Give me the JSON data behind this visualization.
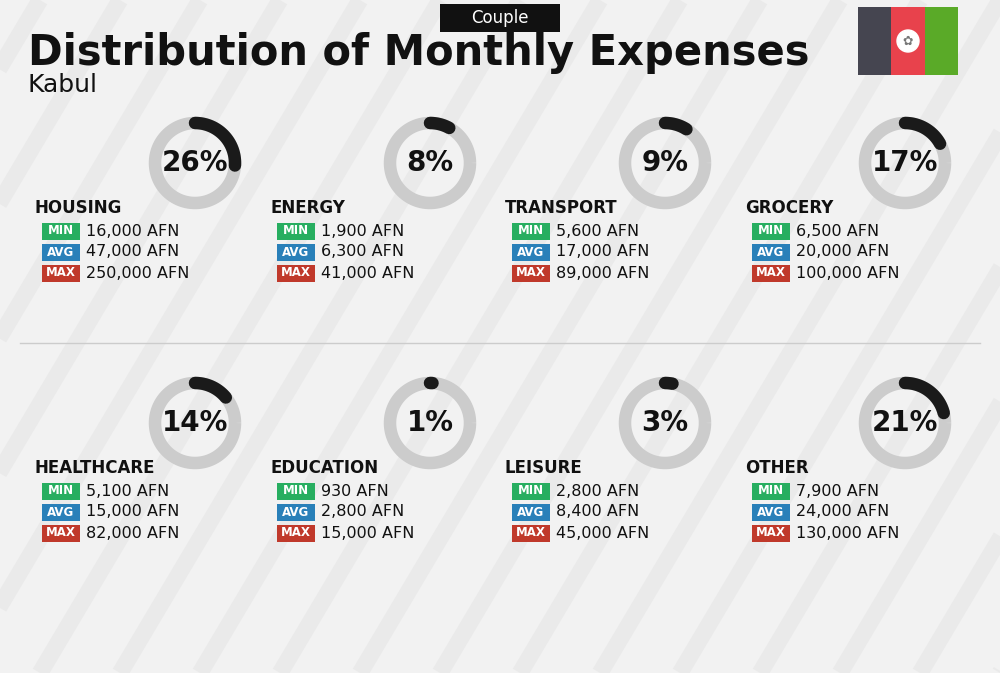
{
  "title": "Distribution of Monthly Expenses",
  "subtitle": "Couple",
  "city": "Kabul",
  "bg_color": "#f2f2f2",
  "categories": [
    {
      "name": "HOUSING",
      "pct": 26,
      "min": "16,000 AFN",
      "avg": "47,000 AFN",
      "max": "250,000 AFN",
      "col": 0,
      "row": 0
    },
    {
      "name": "ENERGY",
      "pct": 8,
      "min": "1,900 AFN",
      "avg": "6,300 AFN",
      "max": "41,000 AFN",
      "col": 1,
      "row": 0
    },
    {
      "name": "TRANSPORT",
      "pct": 9,
      "min": "5,600 AFN",
      "avg": "17,000 AFN",
      "max": "89,000 AFN",
      "col": 2,
      "row": 0
    },
    {
      "name": "GROCERY",
      "pct": 17,
      "min": "6,500 AFN",
      "avg": "20,000 AFN",
      "max": "100,000 AFN",
      "col": 3,
      "row": 0
    },
    {
      "name": "HEALTHCARE",
      "pct": 14,
      "min": "5,100 AFN",
      "avg": "15,000 AFN",
      "max": "82,000 AFN",
      "col": 0,
      "row": 1
    },
    {
      "name": "EDUCATION",
      "pct": 1,
      "min": "930 AFN",
      "avg": "2,800 AFN",
      "max": "15,000 AFN",
      "col": 1,
      "row": 1
    },
    {
      "name": "LEISURE",
      "pct": 3,
      "min": "2,800 AFN",
      "avg": "8,400 AFN",
      "max": "45,000 AFN",
      "col": 2,
      "row": 1
    },
    {
      "name": "OTHER",
      "pct": 21,
      "min": "7,900 AFN",
      "avg": "24,000 AFN",
      "max": "130,000 AFN",
      "col": 3,
      "row": 1
    }
  ],
  "min_color": "#27ae60",
  "avg_color": "#2980b9",
  "max_color": "#c0392b",
  "donut_dark": "#1a1a1a",
  "donut_light": "#cccccc",
  "flag_black": "#454550",
  "flag_red": "#e8424c",
  "flag_green": "#5aaa28",
  "title_fontsize": 30,
  "subtitle_fontsize": 12,
  "city_fontsize": 18,
  "cat_fontsize": 12,
  "val_fontsize": 11.5,
  "pct_fontsize": 20,
  "badge_fontsize": 8.5
}
